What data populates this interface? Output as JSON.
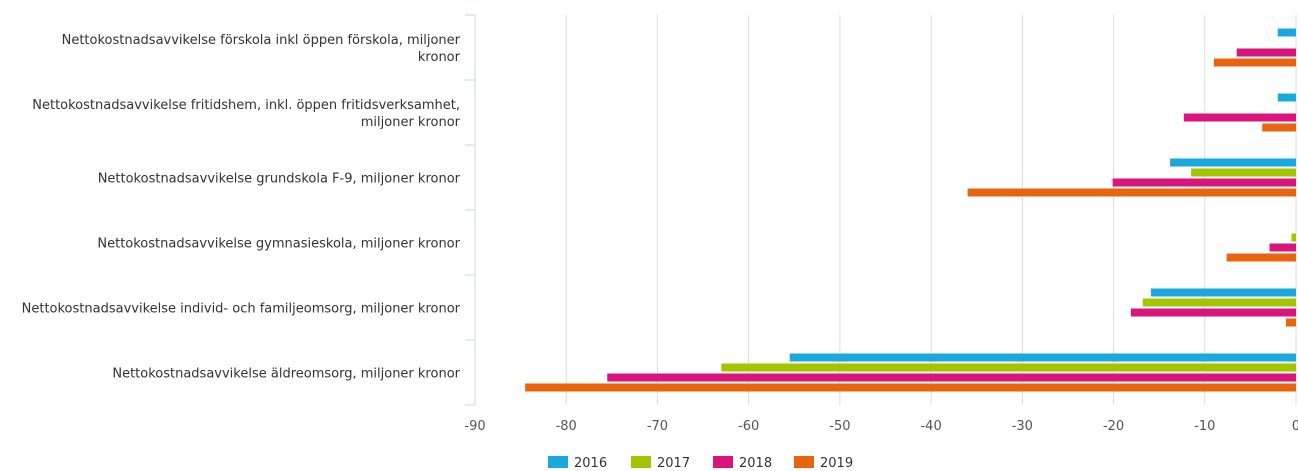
{
  "chart_data": {
    "type": "bar",
    "orientation": "horizontal",
    "categories": [
      [
        "Nettokostnadsavvikelse förskola inkl öppen förskola, miljoner",
        "kronor"
      ],
      [
        "Nettokostnadsavvikelse fritidshem, inkl. öppen fritidsverksamhet,",
        "miljoner kronor"
      ],
      [
        "Nettokostnadsavvikelse grundskola F-9, miljoner kronor"
      ],
      [
        "Nettokostnadsavvikelse gymnasieskola, miljoner kronor"
      ],
      [
        "Nettokostnadsavvikelse individ- och familjeomsorg, miljoner kronor"
      ],
      [
        "Nettokostnadsavvikelse äldreomsorg, miljoner kronor"
      ]
    ],
    "series": [
      {
        "name": "2016",
        "color": "#1ba8dd",
        "values": [
          -2,
          -2,
          -13.8,
          0,
          -15.9,
          -55.5
        ]
      },
      {
        "name": "2017",
        "color": "#a5c400",
        "values": [
          0,
          0,
          -11.5,
          -0.5,
          -16.8,
          -63
        ]
      },
      {
        "name": "2018",
        "color": "#d9157b",
        "values": [
          -6.5,
          -12.3,
          -20.1,
          -2.9,
          -18.1,
          -75.5
        ]
      },
      {
        "name": "2019",
        "color": "#e8650f",
        "values": [
          -9,
          -3.7,
          -36,
          -7.6,
          -1.1,
          -84.5
        ]
      }
    ],
    "xlim": [
      -90,
      0
    ],
    "ticks": [
      "-90",
      "-80",
      "-70",
      "-60",
      "-50",
      "-40",
      "-30",
      "-20",
      "-10",
      "0"
    ],
    "grid": true,
    "legend": "bottom-center"
  }
}
